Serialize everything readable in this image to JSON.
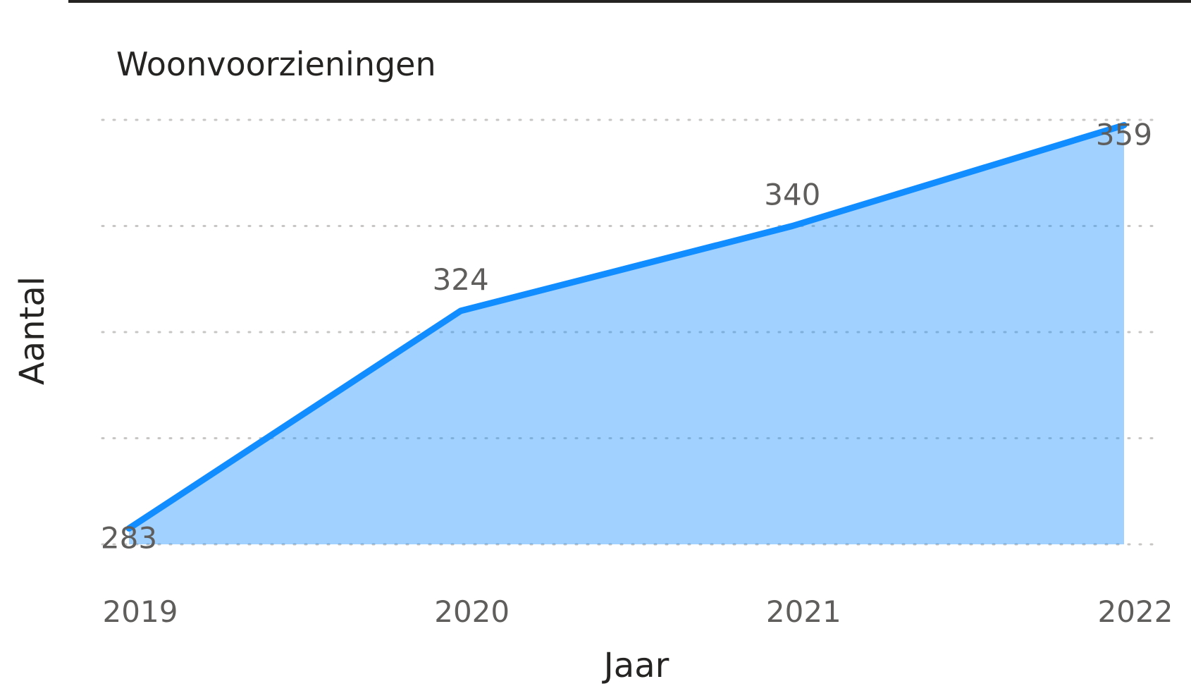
{
  "chart_data": {
    "type": "area",
    "title": "Woonvoorzieningen",
    "x_label": "Jaar",
    "y_label": "Aantal",
    "categories": [
      "2019",
      "2020",
      "2021",
      "2022"
    ],
    "series": [
      {
        "name": "Aantal",
        "color": "#118DFF",
        "values": [
          283,
          324,
          340,
          359
        ]
      }
    ],
    "ylim": [
      280,
      360
    ],
    "yticks": [
      280,
      300,
      320,
      340,
      360
    ],
    "grid": true
  }
}
